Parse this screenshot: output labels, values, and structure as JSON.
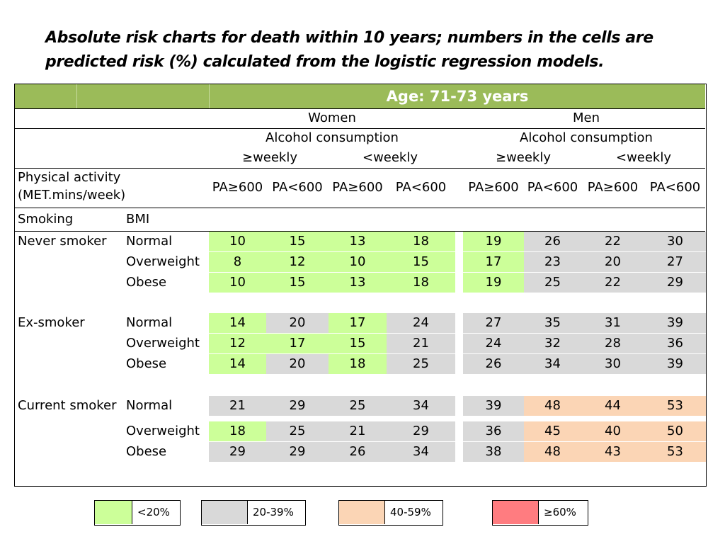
{
  "title_lines": [
    "Absolute risk charts for death within 10 years; numbers in the cells are",
    "predicted risk (%) calculated from the logistic regression models."
  ],
  "age_header": "Age: 71-73  years",
  "sex": [
    "Women",
    "Men"
  ],
  "alcohol_label": "Alcohol consumption",
  "alcohol_levels": [
    "≥weekly",
    "<weekly",
    "≥weekly",
    "<weekly"
  ],
  "pa_label": [
    "Physical activity",
    "(MET.mins/week)"
  ],
  "pa_levels": [
    "PA≥600",
    "PA<600",
    "PA≥600",
    "PA<600",
    "PA≥600",
    "PA<600",
    "PA≥600",
    "PA<600"
  ],
  "row_headers": {
    "smoking": "Smoking",
    "bmi": "BMI"
  },
  "groups": [
    {
      "smoking": "Never smoker",
      "rows": [
        {
          "bmi": "Normal",
          "values": [
            "10",
            "15",
            "13",
            "18",
            "19",
            "26",
            "22",
            "30"
          ],
          "colors": [
            "green",
            "green",
            "green",
            "green",
            "green",
            "gray",
            "gray",
            "gray"
          ]
        },
        {
          "bmi": "Overweight",
          "values": [
            "8",
            "12",
            "10",
            "15",
            "17",
            "23",
            "20",
            "27"
          ],
          "colors": [
            "green",
            "green",
            "green",
            "green",
            "green",
            "gray",
            "gray",
            "gray"
          ]
        },
        {
          "bmi": "Obese",
          "values": [
            "10",
            "15",
            "13",
            "18",
            "19",
            "25",
            "22",
            "29"
          ],
          "colors": [
            "green",
            "green",
            "green",
            "green",
            "green",
            "gray",
            "gray",
            "gray"
          ]
        }
      ]
    },
    {
      "smoking": "Ex-smoker",
      "rows": [
        {
          "bmi": "Normal",
          "values": [
            "14",
            "20",
            "17",
            "24",
            "27",
            "35",
            "31",
            "39"
          ],
          "colors": [
            "green",
            "gray",
            "green",
            "gray",
            "gray",
            "gray",
            "gray",
            "gray"
          ]
        },
        {
          "bmi": "Overweight",
          "values": [
            "12",
            "17",
            "15",
            "21",
            "24",
            "32",
            "28",
            "36"
          ],
          "colors": [
            "green",
            "green",
            "green",
            "gray",
            "gray",
            "gray",
            "gray",
            "gray"
          ]
        },
        {
          "bmi": "Obese",
          "values": [
            "14",
            "20",
            "18",
            "25",
            "26",
            "34",
            "30",
            "39"
          ],
          "colors": [
            "green",
            "gray",
            "green",
            "gray",
            "gray",
            "gray",
            "gray",
            "gray"
          ]
        }
      ]
    },
    {
      "smoking": "Current smoker",
      "rows": [
        {
          "bmi": "Normal",
          "values": [
            "21",
            "29",
            "25",
            "34",
            "39",
            "48",
            "44",
            "53"
          ],
          "colors": [
            "gray",
            "gray",
            "gray",
            "gray",
            "gray",
            "peach",
            "peach",
            "peach"
          ]
        },
        {
          "bmi": "Overweight",
          "values": [
            "18",
            "25",
            "21",
            "29",
            "36",
            "45",
            "40",
            "50"
          ],
          "colors": [
            "green",
            "gray",
            "gray",
            "gray",
            "gray",
            "peach",
            "peach",
            "peach"
          ]
        },
        {
          "bmi": "Obese",
          "values": [
            "29",
            "29",
            "26",
            "34",
            "38",
            "48",
            "43",
            "53"
          ],
          "colors": [
            "gray",
            "gray",
            "gray",
            "gray",
            "gray",
            "peach",
            "peach",
            "peach"
          ]
        }
      ]
    }
  ],
  "legend": [
    {
      "label": "<20%",
      "color": "#ccff99"
    },
    {
      "label": "20-39%",
      "color": "#d9d9d9"
    },
    {
      "label": "40-59%",
      "color": "#fbd5b5"
    },
    {
      "label": "≥60%",
      "color": "#ff7c80"
    }
  ],
  "colors": {
    "header_band": "#9bbb59",
    "green": "#ccff99",
    "gray": "#d9d9d9",
    "peach": "#fbd5b5",
    "red": "#ff7c80"
  }
}
